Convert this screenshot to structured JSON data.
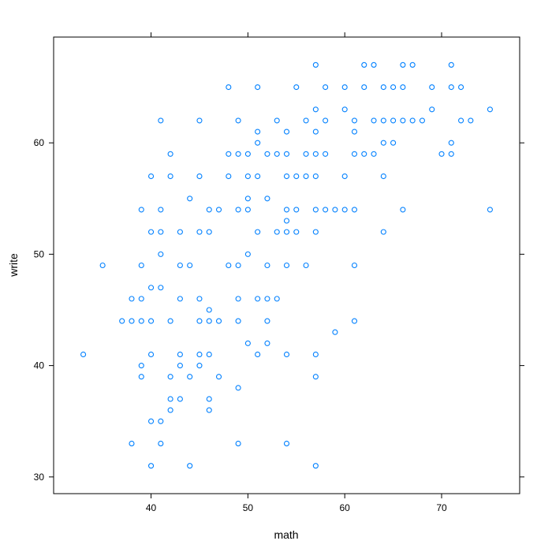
{
  "chart_data": {
    "type": "scatter",
    "title": "",
    "xlabel": "math",
    "ylabel": "write",
    "xlim": [
      29.94,
      78.06
    ],
    "ylim": [
      28.5,
      69.5
    ],
    "xticks": [
      40,
      50,
      60,
      70
    ],
    "yticks": [
      30,
      40,
      50,
      60
    ],
    "grid": false,
    "legend": "none",
    "point_color": "#0080ff",
    "series": [
      {
        "points": [
          [
            33,
            41
          ],
          [
            35,
            49
          ],
          [
            37,
            44
          ],
          [
            38,
            46
          ],
          [
            38,
            33
          ],
          [
            38,
            44
          ],
          [
            39,
            54
          ],
          [
            39,
            49
          ],
          [
            39,
            46
          ],
          [
            39,
            44
          ],
          [
            39,
            40
          ],
          [
            39,
            39
          ],
          [
            40,
            57
          ],
          [
            40,
            52
          ],
          [
            40,
            47
          ],
          [
            40,
            44
          ],
          [
            40,
            41
          ],
          [
            40,
            35
          ],
          [
            40,
            31
          ],
          [
            41,
            62
          ],
          [
            41,
            54
          ],
          [
            41,
            52
          ],
          [
            41,
            50
          ],
          [
            41,
            47
          ],
          [
            41,
            35
          ],
          [
            41,
            33
          ],
          [
            42,
            59
          ],
          [
            42,
            57
          ],
          [
            42,
            44
          ],
          [
            42,
            39
          ],
          [
            42,
            37
          ],
          [
            42,
            36
          ],
          [
            43,
            52
          ],
          [
            43,
            49
          ],
          [
            43,
            46
          ],
          [
            43,
            41
          ],
          [
            43,
            40
          ],
          [
            43,
            37
          ],
          [
            44,
            55
          ],
          [
            44,
            49
          ],
          [
            44,
            39
          ],
          [
            44,
            31
          ],
          [
            45,
            62
          ],
          [
            45,
            57
          ],
          [
            45,
            52
          ],
          [
            45,
            46
          ],
          [
            45,
            44
          ],
          [
            45,
            41
          ],
          [
            45,
            40
          ],
          [
            46,
            54
          ],
          [
            46,
            52
          ],
          [
            46,
            45
          ],
          [
            46,
            44
          ],
          [
            46,
            41
          ],
          [
            46,
            37
          ],
          [
            46,
            36
          ],
          [
            47,
            54
          ],
          [
            47,
            44
          ],
          [
            47,
            39
          ],
          [
            48,
            65
          ],
          [
            48,
            59
          ],
          [
            48,
            57
          ],
          [
            48,
            49
          ],
          [
            49,
            62
          ],
          [
            49,
            59
          ],
          [
            49,
            54
          ],
          [
            49,
            49
          ],
          [
            49,
            46
          ],
          [
            49,
            44
          ],
          [
            49,
            38
          ],
          [
            49,
            33
          ],
          [
            50,
            59
          ],
          [
            50,
            57
          ],
          [
            50,
            55
          ],
          [
            50,
            54
          ],
          [
            50,
            50
          ],
          [
            50,
            42
          ],
          [
            51,
            65
          ],
          [
            51,
            61
          ],
          [
            51,
            60
          ],
          [
            51,
            57
          ],
          [
            51,
            52
          ],
          [
            51,
            46
          ],
          [
            51,
            41
          ],
          [
            52,
            59
          ],
          [
            52,
            55
          ],
          [
            52,
            49
          ],
          [
            52,
            46
          ],
          [
            52,
            44
          ],
          [
            52,
            42
          ],
          [
            53,
            62
          ],
          [
            53,
            59
          ],
          [
            53,
            52
          ],
          [
            53,
            46
          ],
          [
            54,
            61
          ],
          [
            54,
            59
          ],
          [
            54,
            57
          ],
          [
            54,
            54
          ],
          [
            54,
            53
          ],
          [
            54,
            52
          ],
          [
            54,
            49
          ],
          [
            54,
            41
          ],
          [
            54,
            33
          ],
          [
            55,
            65
          ],
          [
            55,
            57
          ],
          [
            55,
            54
          ],
          [
            55,
            52
          ],
          [
            56,
            62
          ],
          [
            56,
            59
          ],
          [
            56,
            57
          ],
          [
            56,
            49
          ],
          [
            57,
            67
          ],
          [
            57,
            63
          ],
          [
            57,
            61
          ],
          [
            57,
            59
          ],
          [
            57,
            57
          ],
          [
            57,
            54
          ],
          [
            57,
            52
          ],
          [
            57,
            41
          ],
          [
            57,
            39
          ],
          [
            57,
            31
          ],
          [
            58,
            65
          ],
          [
            58,
            62
          ],
          [
            58,
            59
          ],
          [
            58,
            54
          ],
          [
            59,
            54
          ],
          [
            59,
            43
          ],
          [
            60,
            65
          ],
          [
            60,
            63
          ],
          [
            60,
            57
          ],
          [
            60,
            54
          ],
          [
            61,
            62
          ],
          [
            61,
            61
          ],
          [
            61,
            59
          ],
          [
            61,
            54
          ],
          [
            61,
            49
          ],
          [
            61,
            44
          ],
          [
            62,
            67
          ],
          [
            62,
            65
          ],
          [
            62,
            59
          ],
          [
            63,
            67
          ],
          [
            63,
            62
          ],
          [
            63,
            59
          ],
          [
            64,
            65
          ],
          [
            64,
            62
          ],
          [
            64,
            60
          ],
          [
            64,
            57
          ],
          [
            64,
            52
          ],
          [
            65,
            65
          ],
          [
            65,
            62
          ],
          [
            65,
            60
          ],
          [
            66,
            67
          ],
          [
            66,
            65
          ],
          [
            66,
            62
          ],
          [
            66,
            54
          ],
          [
            67,
            67
          ],
          [
            67,
            62
          ],
          [
            68,
            62
          ],
          [
            69,
            65
          ],
          [
            69,
            63
          ],
          [
            70,
            59
          ],
          [
            71,
            67
          ],
          [
            71,
            65
          ],
          [
            71,
            60
          ],
          [
            71,
            59
          ],
          [
            72,
            65
          ],
          [
            72,
            62
          ],
          [
            73,
            62
          ],
          [
            75,
            63
          ],
          [
            75,
            54
          ]
        ]
      }
    ]
  }
}
